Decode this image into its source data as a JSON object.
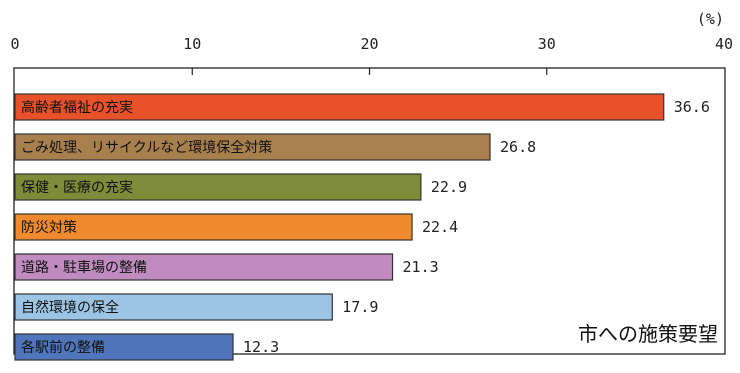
{
  "chart_data": {
    "type": "bar",
    "orientation": "horizontal",
    "unit": "(%)",
    "caption": "市への施策要望",
    "xlim": [
      0,
      40
    ],
    "ticks": [
      "0",
      "10",
      "20",
      "30",
      "40"
    ],
    "tick_values": [
      0,
      10,
      20,
      30,
      40
    ],
    "grid": false,
    "categories": [
      "高齢者福祉の充実",
      "ごみ処理、リサイクルなど環境保全対策",
      "保健・医療の充実",
      "防災対策",
      "道路・駐車場の整備",
      "自然環境の保全",
      "各駅前の整備"
    ],
    "values": [
      36.6,
      26.8,
      22.9,
      22.4,
      21.3,
      17.9,
      12.3
    ],
    "value_labels": [
      "36.6",
      "26.8",
      "22.9",
      "22.4",
      "21.3",
      "17.9",
      "12.3"
    ],
    "colors": [
      "#e8522a",
      "#a8804e",
      "#7e8c3a",
      "#ef8a2e",
      "#c08cc0",
      "#9cc4e4",
      "#4f76bb"
    ]
  }
}
